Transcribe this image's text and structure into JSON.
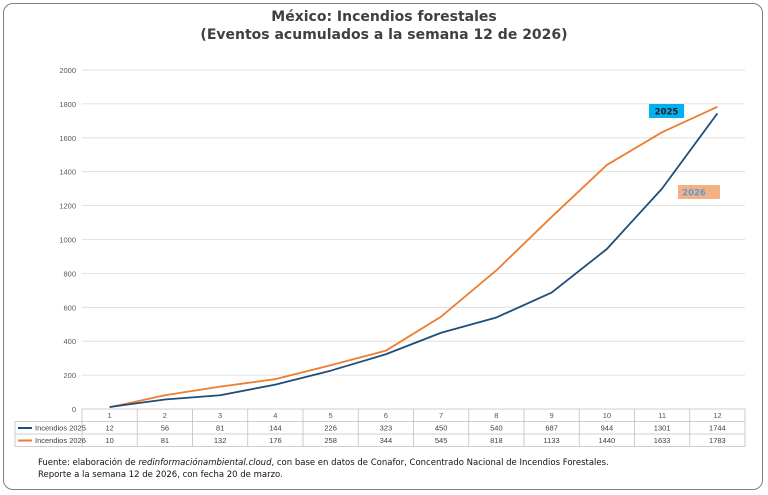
{
  "title_line1": "México: Incendios forestales",
  "title_line2": "(Eventos acumulados a la semana 12 de 2026)",
  "source": {
    "prefix": "Fuente: elaboración de ",
    "site": "redinformaciónambiental.cloud",
    "suffix": ", con base en datos de Conafor, Concentrado Nacional de Incendios Forestales.",
    "line2": "Reporte a la semana 12 de 2026, con fecha 20 de marzo."
  },
  "colors": {
    "s2025": "#1f4e79",
    "s2026": "#ed7d31",
    "label2025_bg": "#00b0f0",
    "label2026_bg": "#f4b183",
    "label2026_text": "#5b9bd5"
  },
  "chart_data": {
    "type": "line",
    "x": [
      "1",
      "2",
      "3",
      "4",
      "5",
      "6",
      "7",
      "8",
      "9",
      "10",
      "11",
      "12"
    ],
    "series": [
      {
        "name": "Incendios 2025",
        "values": [
          12,
          56,
          81,
          144,
          226,
          323,
          450,
          540,
          687,
          944,
          1301,
          1744
        ]
      },
      {
        "name": "Incendios 2026",
        "values": [
          10,
          81,
          132,
          176,
          258,
          344,
          545,
          818,
          1133,
          1440,
          1633,
          1783
        ]
      }
    ],
    "yticks": [
      "0",
      "200",
      "400",
      "600",
      "800",
      "1000",
      "1200",
      "1400",
      "1600",
      "1800",
      "2000"
    ],
    "ylim": [
      0,
      2000
    ],
    "grid": true,
    "legend": "data-table",
    "annotations": [
      "2025",
      "2026"
    ]
  }
}
